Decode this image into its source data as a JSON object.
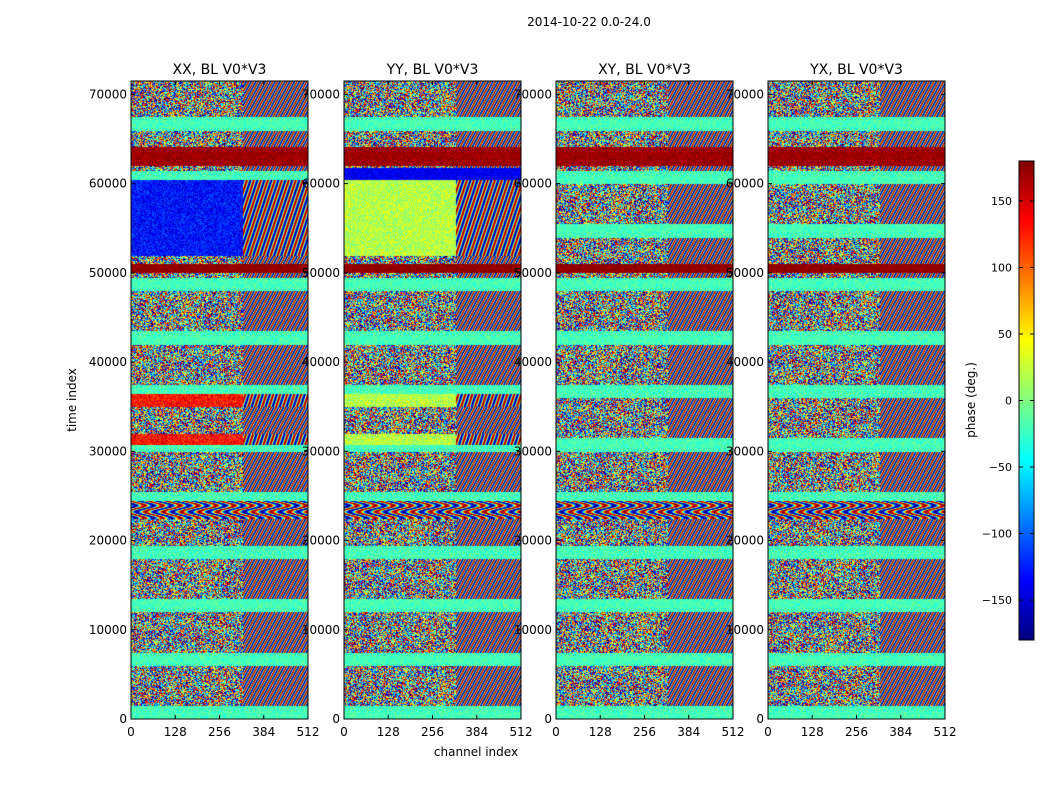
{
  "chart_data": {
    "type": "heatmap",
    "suptitle": "2014-10-22 0.0-24.0",
    "xlabel": "channel index",
    "ylabel": "time index",
    "xlim": [
      0,
      512
    ],
    "ylim": [
      0,
      71500
    ],
    "xticks": [
      0,
      128,
      256,
      384,
      512
    ],
    "yticks": [
      0,
      10000,
      20000,
      30000,
      40000,
      50000,
      60000,
      70000
    ],
    "colorbar": {
      "label": "phase (deg.)",
      "vmin": -180,
      "vmax": 180,
      "ticks": [
        150,
        100,
        50,
        0,
        -50,
        -100,
        -150
      ],
      "tick_labels": [
        "150",
        "100",
        "50",
        "0",
        "−50",
        "−100",
        "−150"
      ],
      "colormap": [
        "#00007f",
        "#0000ff",
        "#007fff",
        "#00ffff",
        "#7fff7f",
        "#ffff00",
        "#ff7f00",
        "#ff0000",
        "#7f0000"
      ]
    },
    "panels": [
      {
        "title": "XX, BL V0*V3"
      },
      {
        "title": "YY, BL V0*V3"
      },
      {
        "title": "XY, BL V0*V3"
      },
      {
        "title": "YX, BL V0*V3"
      }
    ]
  }
}
